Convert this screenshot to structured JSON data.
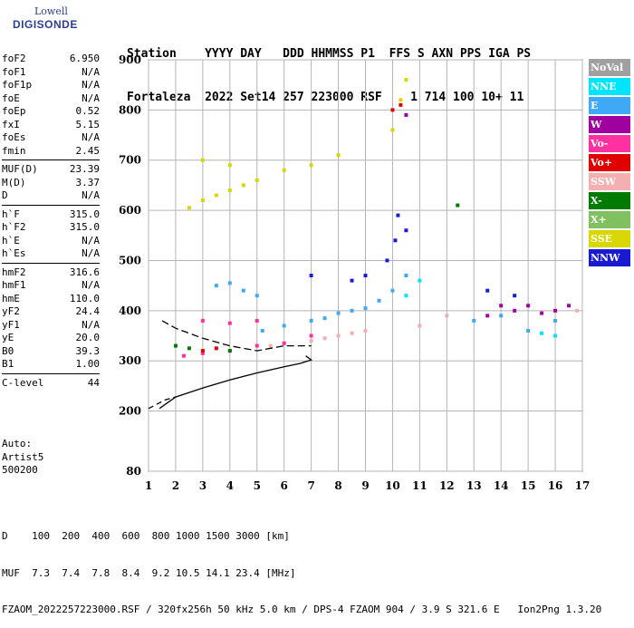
{
  "logo": {
    "top": "Lowell",
    "main": "DIGISONDE"
  },
  "header": {
    "line1": "Station    YYYY DAY   DDD HHMMSS P1  FFS S AXN PPS IGA PS",
    "line2": "Fortaleza  2022 Set14 257 223000 RSF    1 714 100 10+ 11"
  },
  "params": [
    {
      "k": "foF2",
      "v": "6.950"
    },
    {
      "k": "foF1",
      "v": "N/A"
    },
    {
      "k": "foF1p",
      "v": "N/A"
    },
    {
      "k": "foE",
      "v": "N/A"
    },
    {
      "k": "foEp",
      "v": "0.52"
    },
    {
      "k": "fxI",
      "v": "5.15"
    },
    {
      "k": "foEs",
      "v": "N/A"
    },
    {
      "k": "fmin",
      "v": "2.45"
    },
    {
      "sep": true
    },
    {
      "k": "MUF(D)",
      "v": "23.39"
    },
    {
      "k": "M(D)",
      "v": "3.37"
    },
    {
      "k": "D",
      "v": "N/A"
    },
    {
      "sep": true
    },
    {
      "k": "h`F",
      "v": "315.0"
    },
    {
      "k": "h`F2",
      "v": "315.0"
    },
    {
      "k": "h`E",
      "v": "N/A"
    },
    {
      "k": "h`Es",
      "v": "N/A"
    },
    {
      "sep": true
    },
    {
      "k": "hmF2",
      "v": "316.6"
    },
    {
      "k": "hmF1",
      "v": "N/A"
    },
    {
      "k": "hmE",
      "v": "110.0"
    },
    {
      "k": "yF2",
      "v": "24.4"
    },
    {
      "k": "yF1",
      "v": "N/A"
    },
    {
      "k": "yE",
      "v": "20.0"
    },
    {
      "k": "B0",
      "v": "39.3"
    },
    {
      "k": "B1",
      "v": "1.00"
    },
    {
      "sep": true
    },
    {
      "k": "C-level",
      "v": "44"
    }
  ],
  "auto": {
    "l1": "Auto:",
    "l2": "Artist5",
    "l3": "500200"
  },
  "bottom": {
    "l1": "D    100  200  400  600  800 1000 1500 3000 [km]",
    "l2": "MUF  7.3  7.4  7.8  8.4  9.2 10.5 14.1 23.4 [MHz]",
    "l3": "FZAOM_2022257223000.RSF / 320fx256h 50 kHz 5.0 km / DPS-4 FZAOM 904 / 3.9 S 321.6 E   Ion2Png 1.3.20"
  },
  "legend": [
    {
      "label": "NoVal",
      "color": "#a0a0a0"
    },
    {
      "label": "NNE",
      "color": "#00e5ff"
    },
    {
      "label": "E",
      "color": "#3fa9f5"
    },
    {
      "label": "W",
      "color": "#a000a0"
    },
    {
      "label": "Vo-",
      "color": "#ff30a0"
    },
    {
      "label": "Vo+",
      "color": "#e00000"
    },
    {
      "label": "SSW",
      "color": "#f4b0b0"
    },
    {
      "label": "X-",
      "color": "#007a00"
    },
    {
      "label": "X+",
      "color": "#80c060"
    },
    {
      "label": "SSE",
      "color": "#d8d800"
    },
    {
      "label": "NNW",
      "color": "#1a1ad0"
    }
  ],
  "chart_data": {
    "type": "scatter",
    "xlim": [
      1,
      17
    ],
    "ylim": [
      80,
      900
    ],
    "x_ticks": [
      1,
      2,
      3,
      4,
      5,
      6,
      7,
      8,
      9,
      10,
      11,
      12,
      13,
      14,
      15,
      16,
      17
    ],
    "y_ticks": [
      80,
      200,
      300,
      400,
      500,
      600,
      700,
      800,
      900
    ],
    "grid": true,
    "legend_position": "right",
    "series": [
      {
        "name": "E",
        "color": "#3fa9f5",
        "points": [
          [
            5.2,
            360
          ],
          [
            6,
            370
          ],
          [
            7,
            380
          ],
          [
            7.5,
            385
          ],
          [
            8,
            395
          ],
          [
            8.5,
            400
          ],
          [
            9,
            405
          ],
          [
            9.5,
            420
          ],
          [
            10,
            440
          ],
          [
            10.5,
            470
          ],
          [
            3.5,
            450
          ],
          [
            4,
            455
          ],
          [
            4.5,
            440
          ],
          [
            5,
            430
          ],
          [
            13,
            380
          ],
          [
            14,
            390
          ],
          [
            15,
            360
          ],
          [
            16,
            380
          ]
        ]
      },
      {
        "name": "SSE",
        "color": "#d8d800",
        "points": [
          [
            2.5,
            605
          ],
          [
            3,
            620
          ],
          [
            3.5,
            630
          ],
          [
            4,
            640
          ],
          [
            4.5,
            650
          ],
          [
            5,
            660
          ],
          [
            6,
            680
          ],
          [
            7,
            690
          ],
          [
            8,
            710
          ],
          [
            10,
            760
          ],
          [
            10.3,
            820
          ],
          [
            10.5,
            860
          ],
          [
            3,
            700
          ],
          [
            4,
            690
          ]
        ]
      },
      {
        "name": "NNW",
        "color": "#1a1ad0",
        "points": [
          [
            10.1,
            540
          ],
          [
            10.5,
            560
          ],
          [
            10.2,
            590
          ],
          [
            8.5,
            460
          ],
          [
            9,
            470
          ],
          [
            7,
            470
          ],
          [
            9.8,
            500
          ],
          [
            13.5,
            440
          ],
          [
            14.5,
            430
          ]
        ]
      },
      {
        "name": "W",
        "color": "#a000a0",
        "points": [
          [
            14,
            410
          ],
          [
            14.5,
            400
          ],
          [
            15,
            410
          ],
          [
            15.5,
            395
          ],
          [
            16,
            400
          ],
          [
            16.5,
            410
          ],
          [
            13.5,
            390
          ],
          [
            10.5,
            790
          ]
        ]
      },
      {
        "name": "SSW",
        "color": "#f4b0b0",
        "points": [
          [
            7,
            340
          ],
          [
            7.5,
            345
          ],
          [
            8,
            350
          ],
          [
            8.5,
            355
          ],
          [
            9,
            360
          ],
          [
            6,
            335
          ],
          [
            5.5,
            330
          ],
          [
            11,
            370
          ],
          [
            12,
            390
          ],
          [
            16.8,
            400
          ]
        ]
      },
      {
        "name": "Vo-",
        "color": "#ff30a0",
        "points": [
          [
            2.3,
            310
          ],
          [
            3,
            315
          ],
          [
            4,
            320
          ],
          [
            5,
            330
          ],
          [
            6,
            335
          ],
          [
            7,
            350
          ],
          [
            3,
            380
          ],
          [
            4,
            375
          ],
          [
            5,
            380
          ]
        ]
      },
      {
        "name": "X-",
        "color": "#007a00",
        "points": [
          [
            12.4,
            610
          ],
          [
            2,
            330
          ],
          [
            2.5,
            325
          ],
          [
            4,
            320
          ]
        ]
      },
      {
        "name": "NNE",
        "color": "#00e5ff",
        "points": [
          [
            10.5,
            430
          ],
          [
            11,
            460
          ],
          [
            15.5,
            355
          ],
          [
            16,
            350
          ]
        ]
      },
      {
        "name": "Vo+",
        "color": "#e00000",
        "points": [
          [
            3,
            320
          ],
          [
            3.5,
            325
          ],
          [
            10,
            800
          ],
          [
            10.3,
            810
          ]
        ]
      }
    ],
    "profile_curve": [
      [
        1.4,
        205
      ],
      [
        2,
        228
      ],
      [
        3,
        246
      ],
      [
        4,
        262
      ],
      [
        5,
        276
      ],
      [
        6,
        288
      ],
      [
        6.6,
        295
      ],
      [
        7,
        302
      ],
      [
        6.8,
        310
      ]
    ],
    "profile_dashed": [
      [
        1,
        205
      ],
      [
        1.6,
        222
      ],
      [
        2,
        228
      ]
    ],
    "trace_black": [
      [
        1.5,
        380
      ],
      [
        2,
        365
      ],
      [
        3,
        345
      ],
      [
        4,
        330
      ],
      [
        5,
        320
      ],
      [
        6,
        330
      ],
      [
        7,
        330
      ]
    ]
  }
}
